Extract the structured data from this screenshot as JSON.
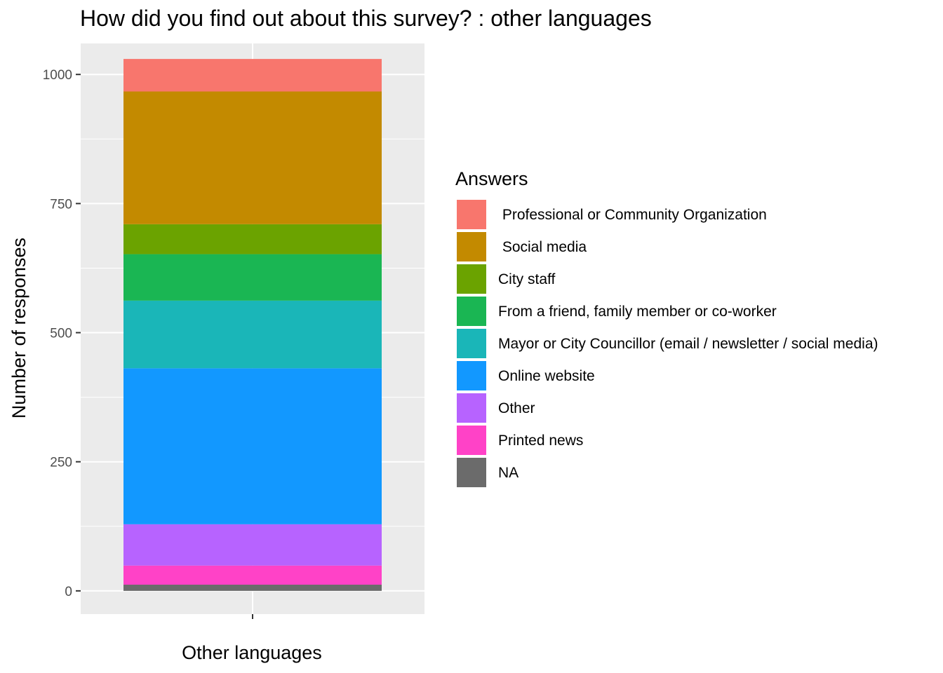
{
  "chart_data": {
    "type": "bar",
    "stacked": true,
    "title": "How did you find out about this survey? : other languages",
    "xlabel": "Other languages",
    "ylabel": "Number of responses",
    "categories": [
      "Other languages"
    ],
    "ylim": [
      -45,
      1060
    ],
    "yticks": [
      0,
      250,
      500,
      750,
      1000
    ],
    "ytick_labels": [
      "0",
      "250",
      "500",
      "750",
      "1000"
    ],
    "grid": true,
    "legend": {
      "title": "Answers",
      "position": "right"
    },
    "series": [
      {
        "name": " Professional or Community Organization",
        "values": [
          63
        ],
        "color": "#F8766D"
      },
      {
        "name": " Social media",
        "values": [
          257
        ],
        "color": "#C38A00"
      },
      {
        "name": "City staff",
        "values": [
          58
        ],
        "color": "#6BA300"
      },
      {
        "name": "From a friend, family member or co-worker",
        "values": [
          90
        ],
        "color": "#1AB653"
      },
      {
        "name": "Mayor or City Councillor (email / newsletter / social media)",
        "values": [
          131
        ],
        "color": "#1AB6B8"
      },
      {
        "name": "Online website",
        "values": [
          302
        ],
        "color": "#1298FF"
      },
      {
        "name": "Other",
        "values": [
          80
        ],
        "color": "#B763FF"
      },
      {
        "name": "Printed news",
        "values": [
          37
        ],
        "color": "#FF42C7"
      },
      {
        "name": "NA",
        "values": [
          12
        ],
        "color": "#6B6B6B"
      }
    ]
  }
}
